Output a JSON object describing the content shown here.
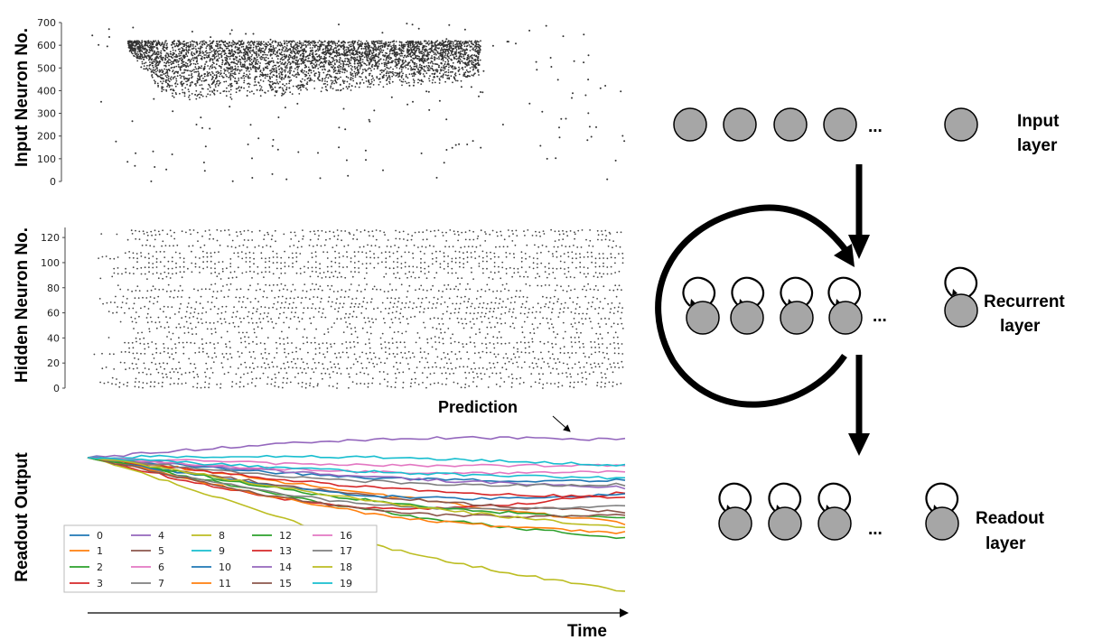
{
  "raster_input": {
    "ylabel": "Input Neuron No.",
    "yticks": [
      "0",
      "100",
      "200",
      "300",
      "400",
      "500",
      "600",
      "700"
    ],
    "ylim": [
      0,
      700
    ]
  },
  "raster_hidden": {
    "ylabel": "Hidden Neuron No.",
    "yticks": [
      "0",
      "20",
      "40",
      "60",
      "80",
      "100",
      "120"
    ],
    "ylim": [
      0,
      128
    ]
  },
  "readout": {
    "ylabel": "Readout Output",
    "annotation": "Prediction",
    "legend": [
      "0",
      "1",
      "2",
      "3",
      "4",
      "5",
      "6",
      "7",
      "8",
      "9",
      "10",
      "11",
      "12",
      "13",
      "14",
      "15",
      "16",
      "17",
      "18",
      "19"
    ],
    "colors": [
      "#1f77b4",
      "#ff7f0e",
      "#2ca02c",
      "#d62728",
      "#9467bd",
      "#8c564b",
      "#e377c2",
      "#7f7f7f",
      "#bcbd22",
      "#17becf",
      "#1f77b4",
      "#ff7f0e",
      "#2ca02c",
      "#d62728",
      "#9467bd",
      "#8c564b",
      "#e377c2",
      "#7f7f7f",
      "#bcbd22",
      "#17becf"
    ]
  },
  "time_axis": {
    "label": "Time"
  },
  "architecture": {
    "input_label_line1": "Input",
    "input_label_line2": "layer",
    "recurrent_label_line1": "Recurrent",
    "recurrent_label_line2": "layer",
    "readout_label_line1": "Readout",
    "readout_label_line2": "layer",
    "ellipsis": "...",
    "node_fill": "#a6a6a6"
  },
  "chart_data": [
    {
      "type": "scatter",
      "ylabel": "Input Neuron No.",
      "ylim": [
        0,
        700
      ],
      "y_ticks": [
        0,
        100,
        200,
        300,
        400,
        500,
        600,
        700
      ],
      "series": [
        {
          "points": []
        }
      ]
    },
    {
      "type": "scatter",
      "ylabel": "Hidden Neuron No.",
      "ylim": [
        0,
        128
      ],
      "y_ticks": [
        0,
        20,
        40,
        60,
        80,
        100,
        120
      ],
      "series": [
        {
          "points": []
        }
      ]
    },
    {
      "type": "line",
      "ylabel": "Readout Output",
      "xlabel": "Time",
      "annotation": "Prediction",
      "series": [
        {
          "name": "0"
        },
        {
          "name": "1"
        },
        {
          "name": "2"
        },
        {
          "name": "3"
        },
        {
          "name": "4"
        },
        {
          "name": "5"
        },
        {
          "name": "6"
        },
        {
          "name": "7"
        },
        {
          "name": "8"
        },
        {
          "name": "9"
        },
        {
          "name": "10"
        },
        {
          "name": "11"
        },
        {
          "name": "12"
        },
        {
          "name": "13"
        },
        {
          "name": "14"
        },
        {
          "name": "15"
        },
        {
          "name": "16"
        },
        {
          "name": "17"
        },
        {
          "name": "18"
        },
        {
          "name": "19"
        }
      ],
      "legend": "lower-left"
    }
  ]
}
